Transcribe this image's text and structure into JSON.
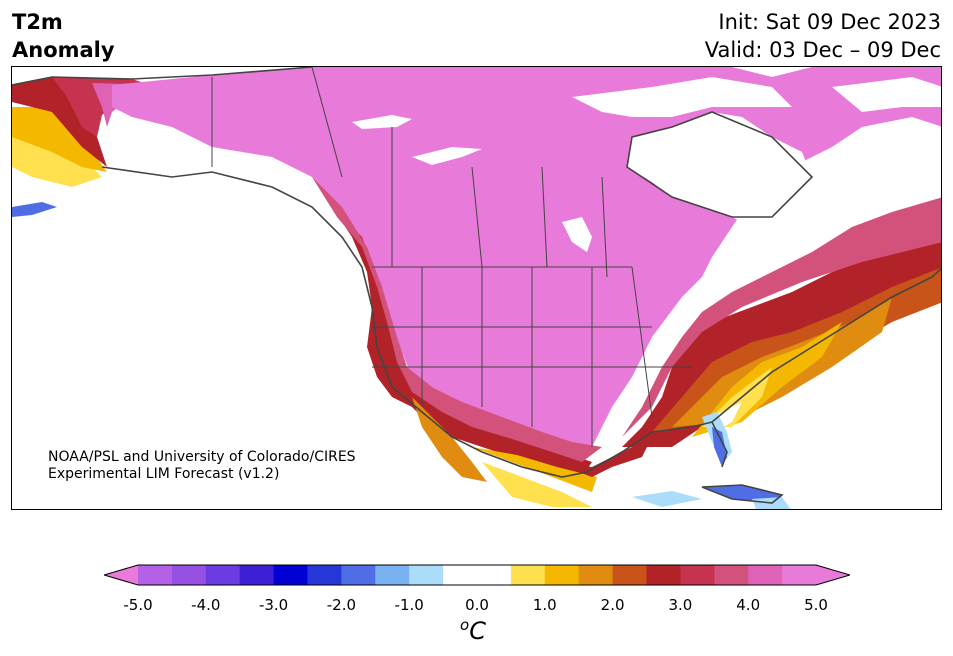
{
  "header": {
    "variable": "T2m",
    "quantity": "Anomaly",
    "init": "Init: Sat 09 Dec 2023",
    "valid": "Valid: 03 Dec – 09 Dec"
  },
  "map": {
    "region": "North America",
    "credit_line1": "NOAA/PSL and University of Colorado/CIRES",
    "credit_line2": "Experimental LIM Forecast (v1.2)"
  },
  "colorbar": {
    "ticks": [
      "-5.0",
      "-4.0",
      "-3.0",
      "-2.0",
      "-1.0",
      "0.0",
      "1.0",
      "2.0",
      "3.0",
      "4.0",
      "5.0"
    ],
    "unit_base": "C",
    "unit_sup": "o",
    "colors": [
      "#b461e8",
      "#9650e3",
      "#6c3be2",
      "#3e1fd6",
      "#0000d2",
      "#2737d9",
      "#4f6ee6",
      "#79b2f1",
      "#abdcfa",
      "#ffffff",
      "#ffffff",
      "#ffe14f",
      "#f4b800",
      "#df8c10",
      "#c9541a",
      "#b12328",
      "#c6334f",
      "#d3527c",
      "#de62b6",
      "#e87ad9"
    ],
    "under_color": "#e87ad9",
    "over_color": "#e87ad9"
  }
}
